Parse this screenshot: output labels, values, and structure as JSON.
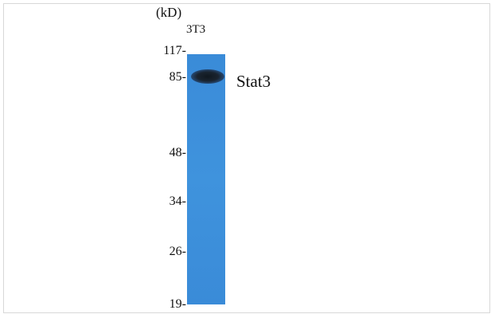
{
  "unit_label": "(kD)",
  "lane_label": "3T3",
  "protein_label": "Stat3",
  "markers": [
    {
      "label": "117",
      "tick": "-"
    },
    {
      "label": "85",
      "tick": "-"
    },
    {
      "label": "48",
      "tick": "-"
    },
    {
      "label": "34",
      "tick": "-"
    },
    {
      "label": "26",
      "tick": "-"
    },
    {
      "label": "19",
      "tick": "-"
    }
  ],
  "colors": {
    "lane": "#3a8bd8",
    "band": "#101820"
  }
}
